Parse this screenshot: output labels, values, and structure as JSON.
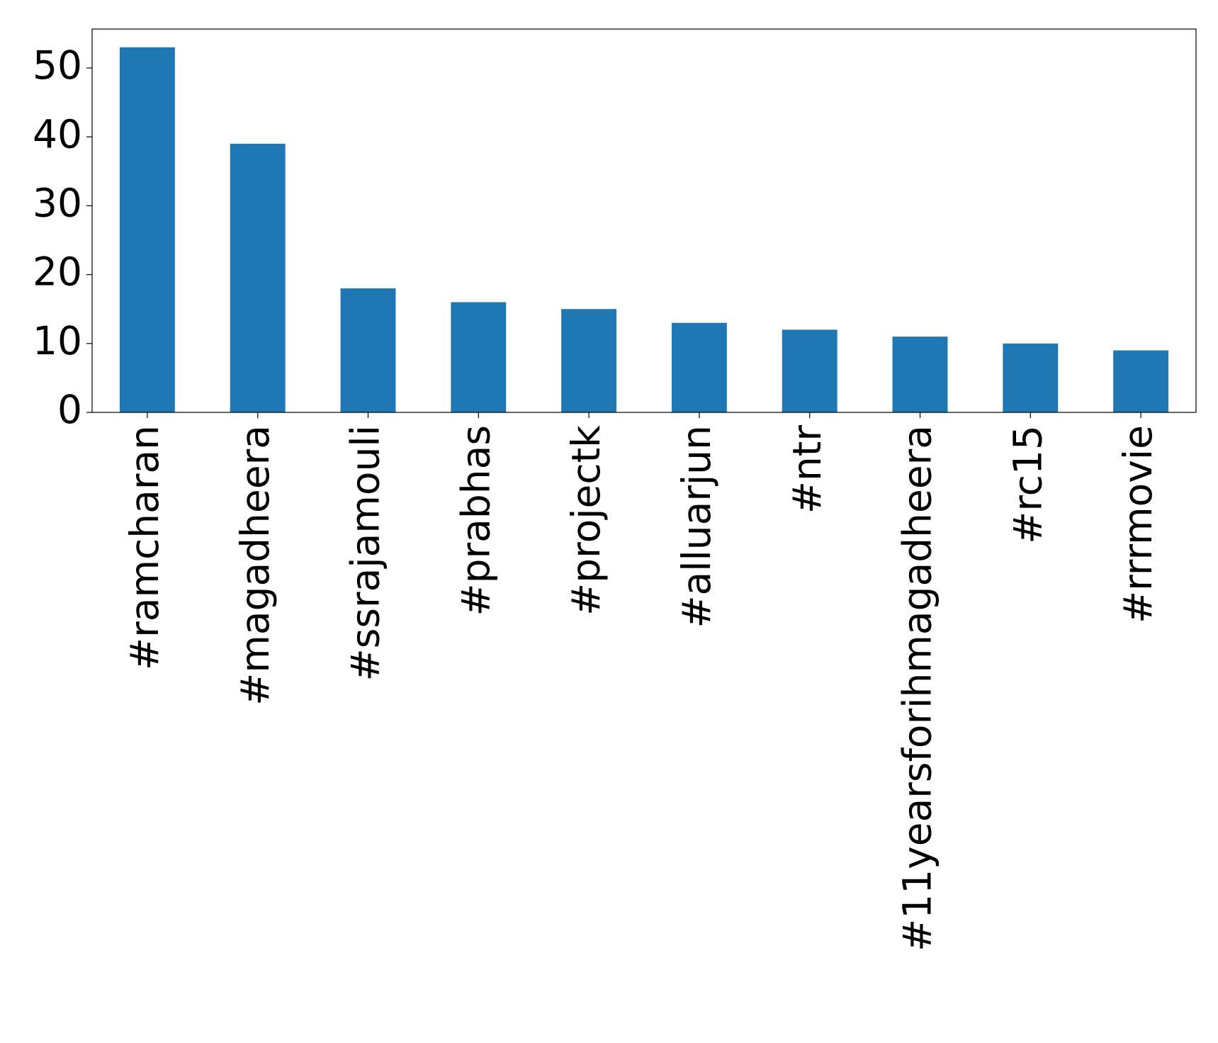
{
  "chart_data": {
    "type": "bar",
    "categories": [
      "#ramcharan",
      "#magadheera",
      "#ssrajamouli",
      "#prabhas",
      "#projectk",
      "#alluarjun",
      "#ntr",
      "#11yearsforihmagadheera",
      "#rc15",
      "#rrrmovie"
    ],
    "values": [
      53,
      39,
      18,
      16,
      15,
      13,
      12,
      11,
      10,
      9
    ],
    "color": "#1f77b4",
    "ylim": [
      0,
      55.65
    ],
    "yticks": [
      0,
      10,
      20,
      30,
      40,
      50
    ],
    "grid": false
  }
}
